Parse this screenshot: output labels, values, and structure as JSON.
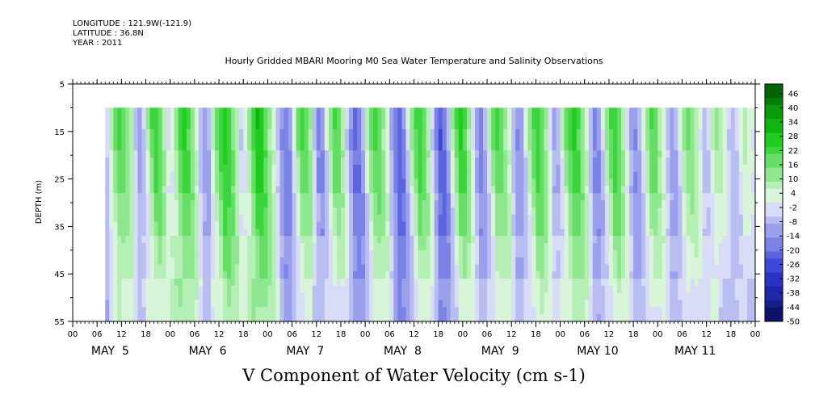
{
  "header": {
    "longitude": "LONGITUDE : 121.9W(-121.9)",
    "latitude": "LATITUDE : 36.8N",
    "year": "YEAR : 2011",
    "title": "Hourly Gridded MBARI Mooring M0 Sea Water Temperature and Salinity Observations"
  },
  "chart_data": {
    "type": "heatmap",
    "title": "Hourly Gridded MBARI Mooring M0 Sea Water Temperature and Salinity Observations",
    "xlabel": "",
    "ylabel": "DEPTH (m)",
    "bottom_title": "V Component of Water Velocity (cm s-1)",
    "y_ticks": [
      "5",
      "15",
      "25",
      "35",
      "45",
      "55"
    ],
    "y_range": [
      5,
      55
    ],
    "y_inverted": true,
    "data_depth_range": [
      10,
      55
    ],
    "hour_ticks": [
      "00",
      "06",
      "12",
      "18",
      "00",
      "06",
      "12",
      "18",
      "00",
      "06",
      "12",
      "18",
      "00",
      "06",
      "12",
      "18",
      "00",
      "06",
      "12",
      "18",
      "00",
      "06",
      "12",
      "18",
      "00",
      "06",
      "12",
      "18",
      "00"
    ],
    "day_labels": [
      "MAY  5",
      "MAY  6",
      "MAY  7",
      "MAY  8",
      "MAY  9",
      "MAY 10",
      "MAY 11"
    ],
    "data_start_hour": 8,
    "data_end_hour": 168,
    "colorbar": {
      "labels": [
        "46",
        "40",
        "34",
        "28",
        "22",
        "16",
        "10",
        "4",
        "-2",
        "-8",
        "-14",
        "-20",
        "-26",
        "-32",
        "-38",
        "-44",
        "-50"
      ],
      "min": -50,
      "max": 50,
      "colors_positive": [
        "#d9f5d9",
        "#b5efb5",
        "#8fe78f",
        "#66de66",
        "#3dd53d",
        "#1fcc1f",
        "#10b510",
        "#0a9a0a",
        "#067e06",
        "#046404",
        "#034d03"
      ],
      "colors_negative": [
        "#d9dcf7",
        "#b9bef2",
        "#9aa0ec",
        "#7b82e5",
        "#5c65df",
        "#3d48d8",
        "#2a33c4",
        "#1f27a6",
        "#161d88",
        "#0e136a",
        "#080b4e"
      ]
    },
    "columns_v": [
      -3,
      8,
      16,
      22,
      18,
      12,
      6,
      -6,
      -10,
      -4,
      10,
      20,
      24,
      18,
      8,
      -2,
      4,
      14,
      22,
      26,
      20,
      12,
      4,
      -8,
      -12,
      -6,
      8,
      18,
      24,
      28,
      22,
      14,
      6,
      -4,
      2,
      14,
      24,
      30,
      26,
      18,
      10,
      4,
      -6,
      -14,
      -18,
      -10,
      4,
      16,
      22,
      18,
      10,
      -8,
      -16,
      -12,
      2,
      14,
      20,
      16,
      8,
      -4,
      -14,
      -20,
      -16,
      -6,
      8,
      18,
      22,
      18,
      10,
      2,
      -10,
      -18,
      -22,
      -14,
      0,
      12,
      20,
      24,
      16,
      8,
      -4,
      -16,
      -24,
      -18,
      -6,
      10,
      20,
      26,
      20,
      10,
      -2,
      -12,
      -16,
      -8,
      6,
      16,
      22,
      18,
      10,
      4,
      -8,
      -14,
      -10,
      2,
      12,
      20,
      24,
      18,
      10,
      -2,
      -10,
      -6,
      6,
      16,
      22,
      26,
      20,
      12,
      4,
      -8,
      -16,
      -12,
      0,
      12,
      20,
      24,
      18,
      8,
      -2,
      -10,
      -14,
      -8,
      4,
      14,
      20,
      16,
      8,
      2,
      -6,
      -12,
      -8,
      2,
      12,
      18,
      14,
      8,
      0,
      -6,
      -2,
      6,
      12,
      8,
      2,
      -4,
      -8,
      -2,
      4,
      8,
      4,
      0
    ]
  }
}
